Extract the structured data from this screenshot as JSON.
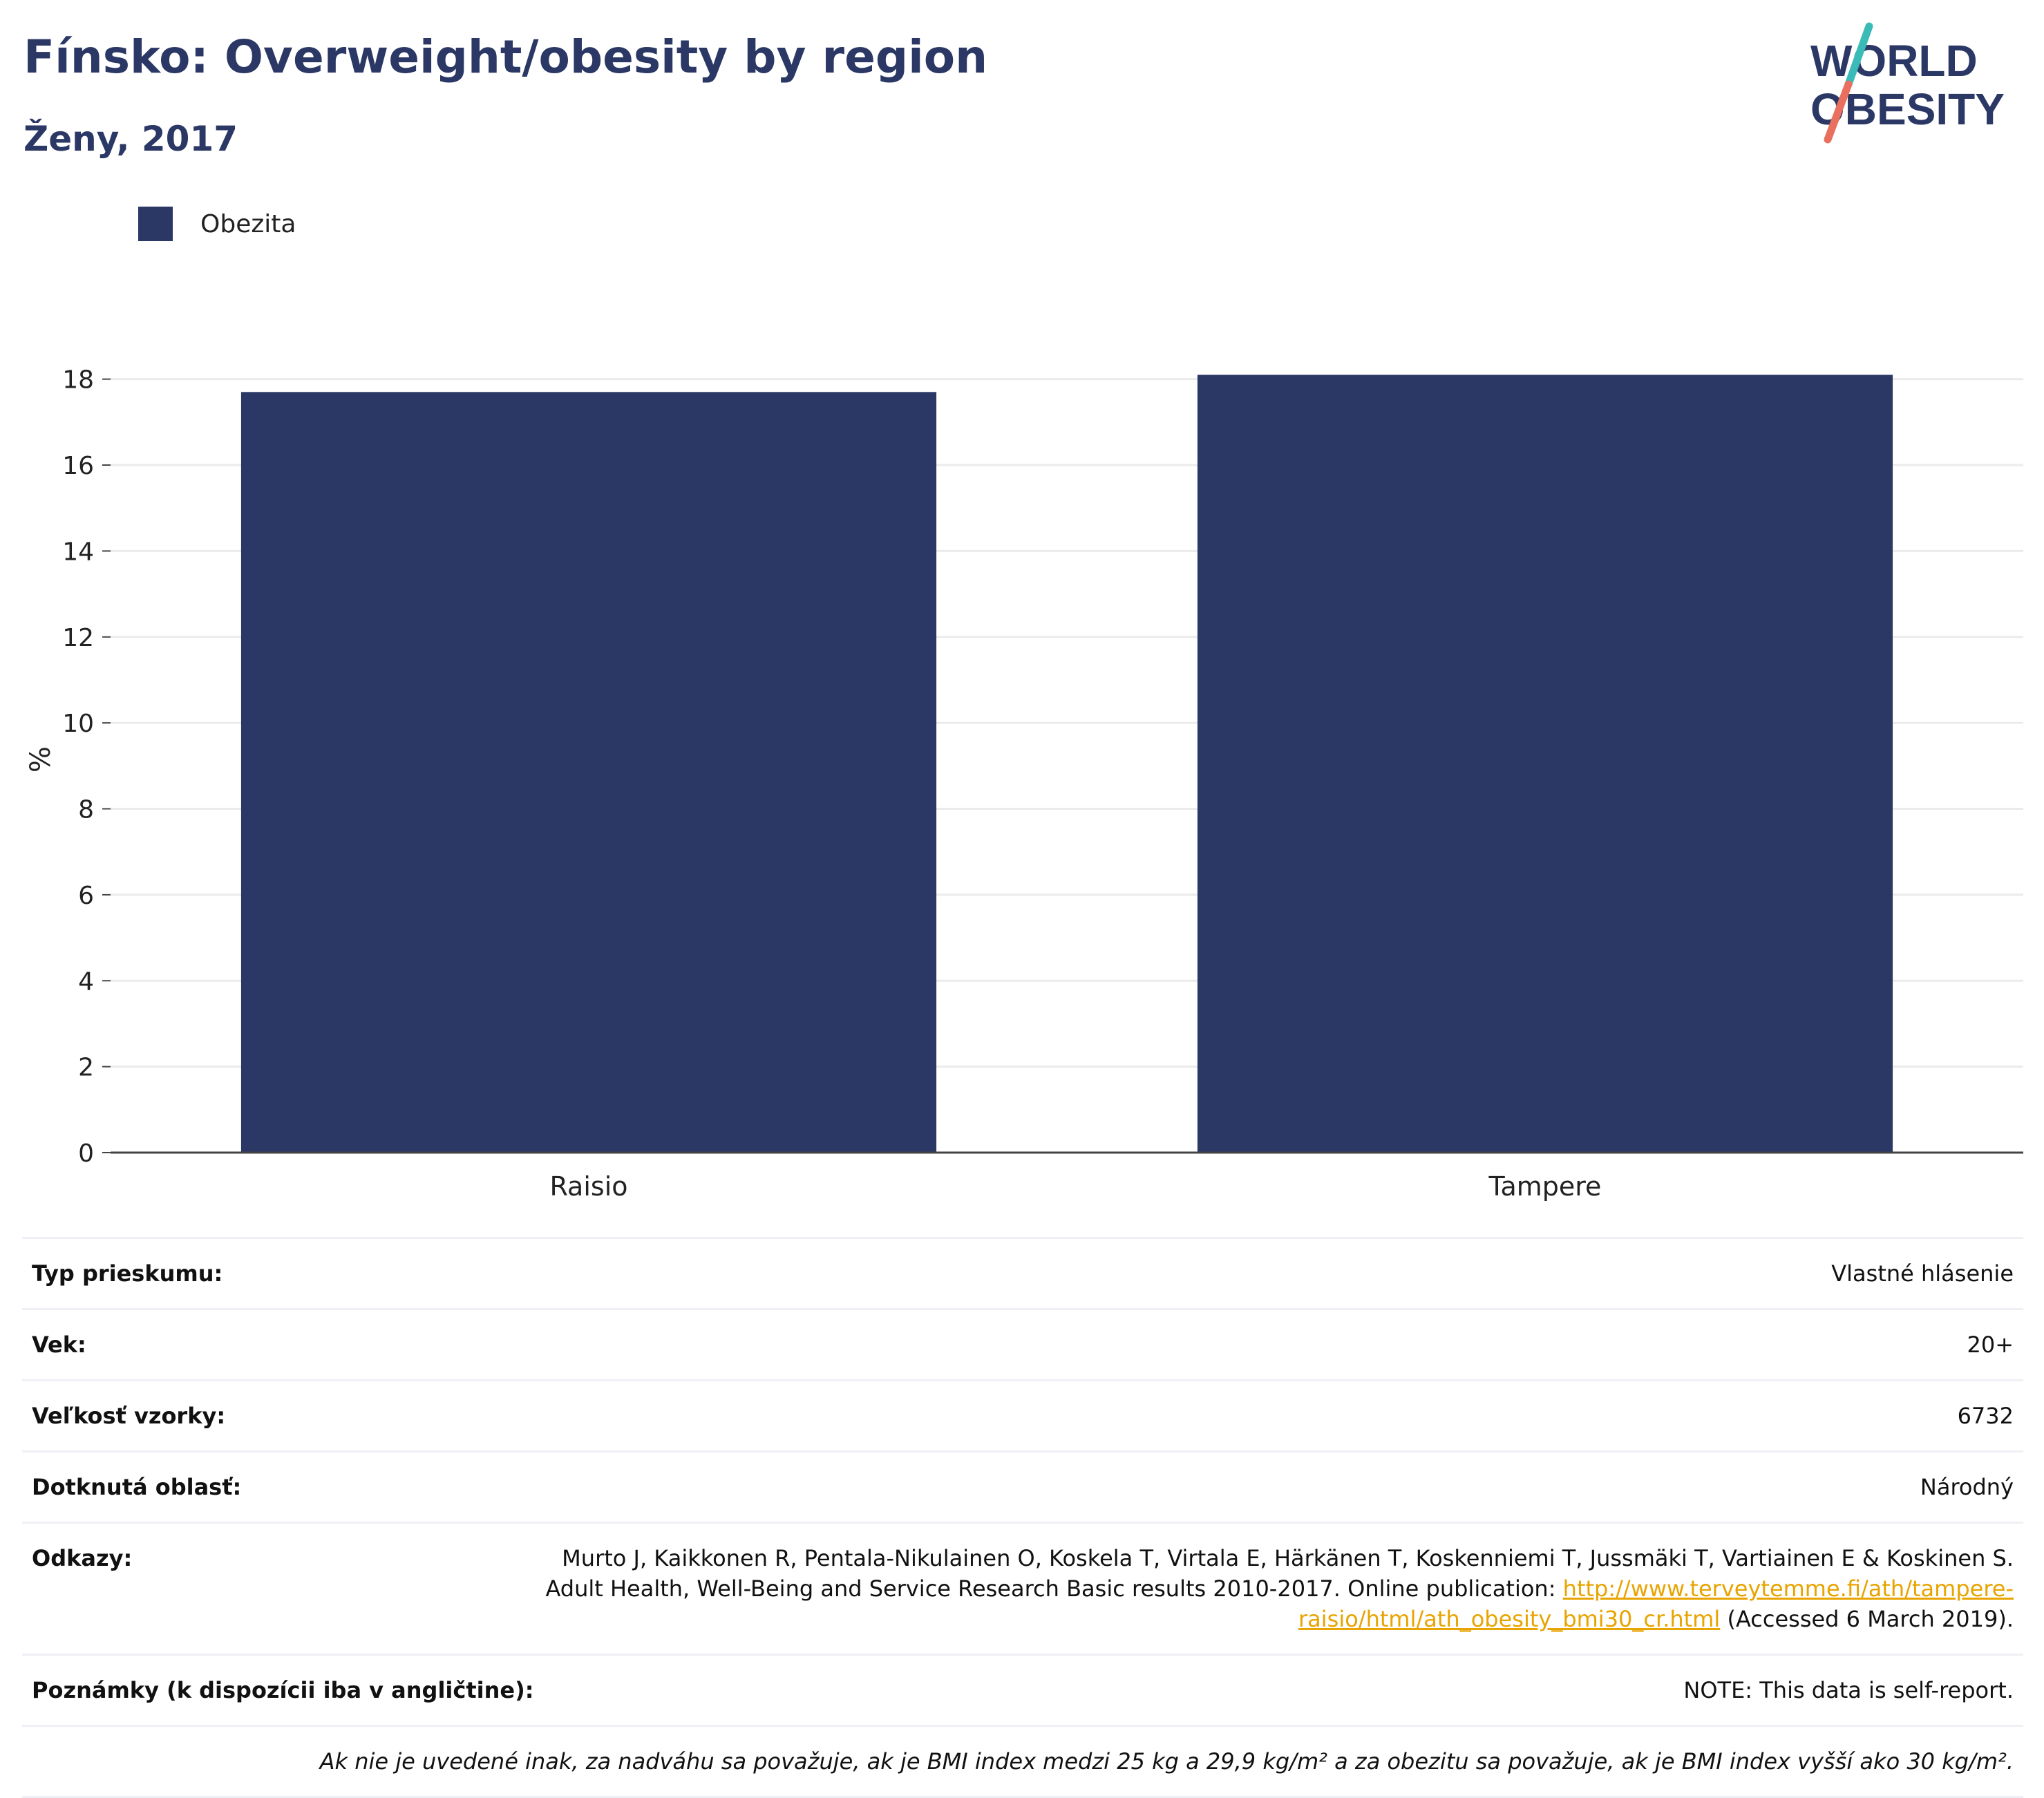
{
  "header": {
    "title": "Fínsko: Overweight/obesity by region",
    "subtitle": "Ženy, 2017"
  },
  "logo": {
    "line1": "WORLD",
    "line2": "OBESITY"
  },
  "colors": {
    "bar": "#2b3865",
    "title": "#2b3865",
    "link": "#e8a400",
    "logo_teal": "#3bbbb7",
    "logo_coral": "#e9705e"
  },
  "chart_data": {
    "type": "bar",
    "categories": [
      "Raisio",
      "Tampere"
    ],
    "series": [
      {
        "name": "Obezita",
        "values": [
          17.7,
          18.1
        ]
      }
    ],
    "ylabel": "%",
    "xlabel": "",
    "ylim": [
      0,
      18.3
    ],
    "yticks": [
      0,
      2,
      4,
      6,
      8,
      10,
      12,
      14,
      16,
      18
    ],
    "grid": true,
    "legend": "top-left"
  },
  "info": {
    "survey_type": {
      "label": "Typ prieskumu:",
      "value": "Vlastné hlásenie"
    },
    "age": {
      "label": "Vek:",
      "value": "20+"
    },
    "sample_size": {
      "label": "Veľkosť vzorky:",
      "value": "6732"
    },
    "area": {
      "label": "Dotknutá oblasť:",
      "value": "Národný"
    },
    "references": {
      "label": "Odkazy:",
      "line1": "Murto J, Kaikkonen R, Pentala-Nikulainen O, Koskela T, Virtala E, Härkänen T, Koskenniemi T, Jussmäki T, Vartiainen E & Koskinen S.",
      "line2_prefix": "Adult Health, Well-Being and Service Research Basic results 2010-2017. Online publication: ",
      "link_part1": "http://www.terveytemme.fi/ath/tampere-",
      "link_part2": "raisio/html/ath_obesity_bmi30_cr.html",
      "suffix": " (Accessed 6 March 2019)."
    },
    "notes": {
      "label": "Poznámky (k dispozícii iba v angličtine):",
      "value": "NOTE: This data is self-report."
    },
    "definition": "Ak nie je uvedené inak, za nadváhu sa považuje, ak je BMI index medzi 25 kg a 29,9 kg/m² a za obezitu sa považuje, ak je BMI index vyšší ako 30 kg/m²."
  }
}
